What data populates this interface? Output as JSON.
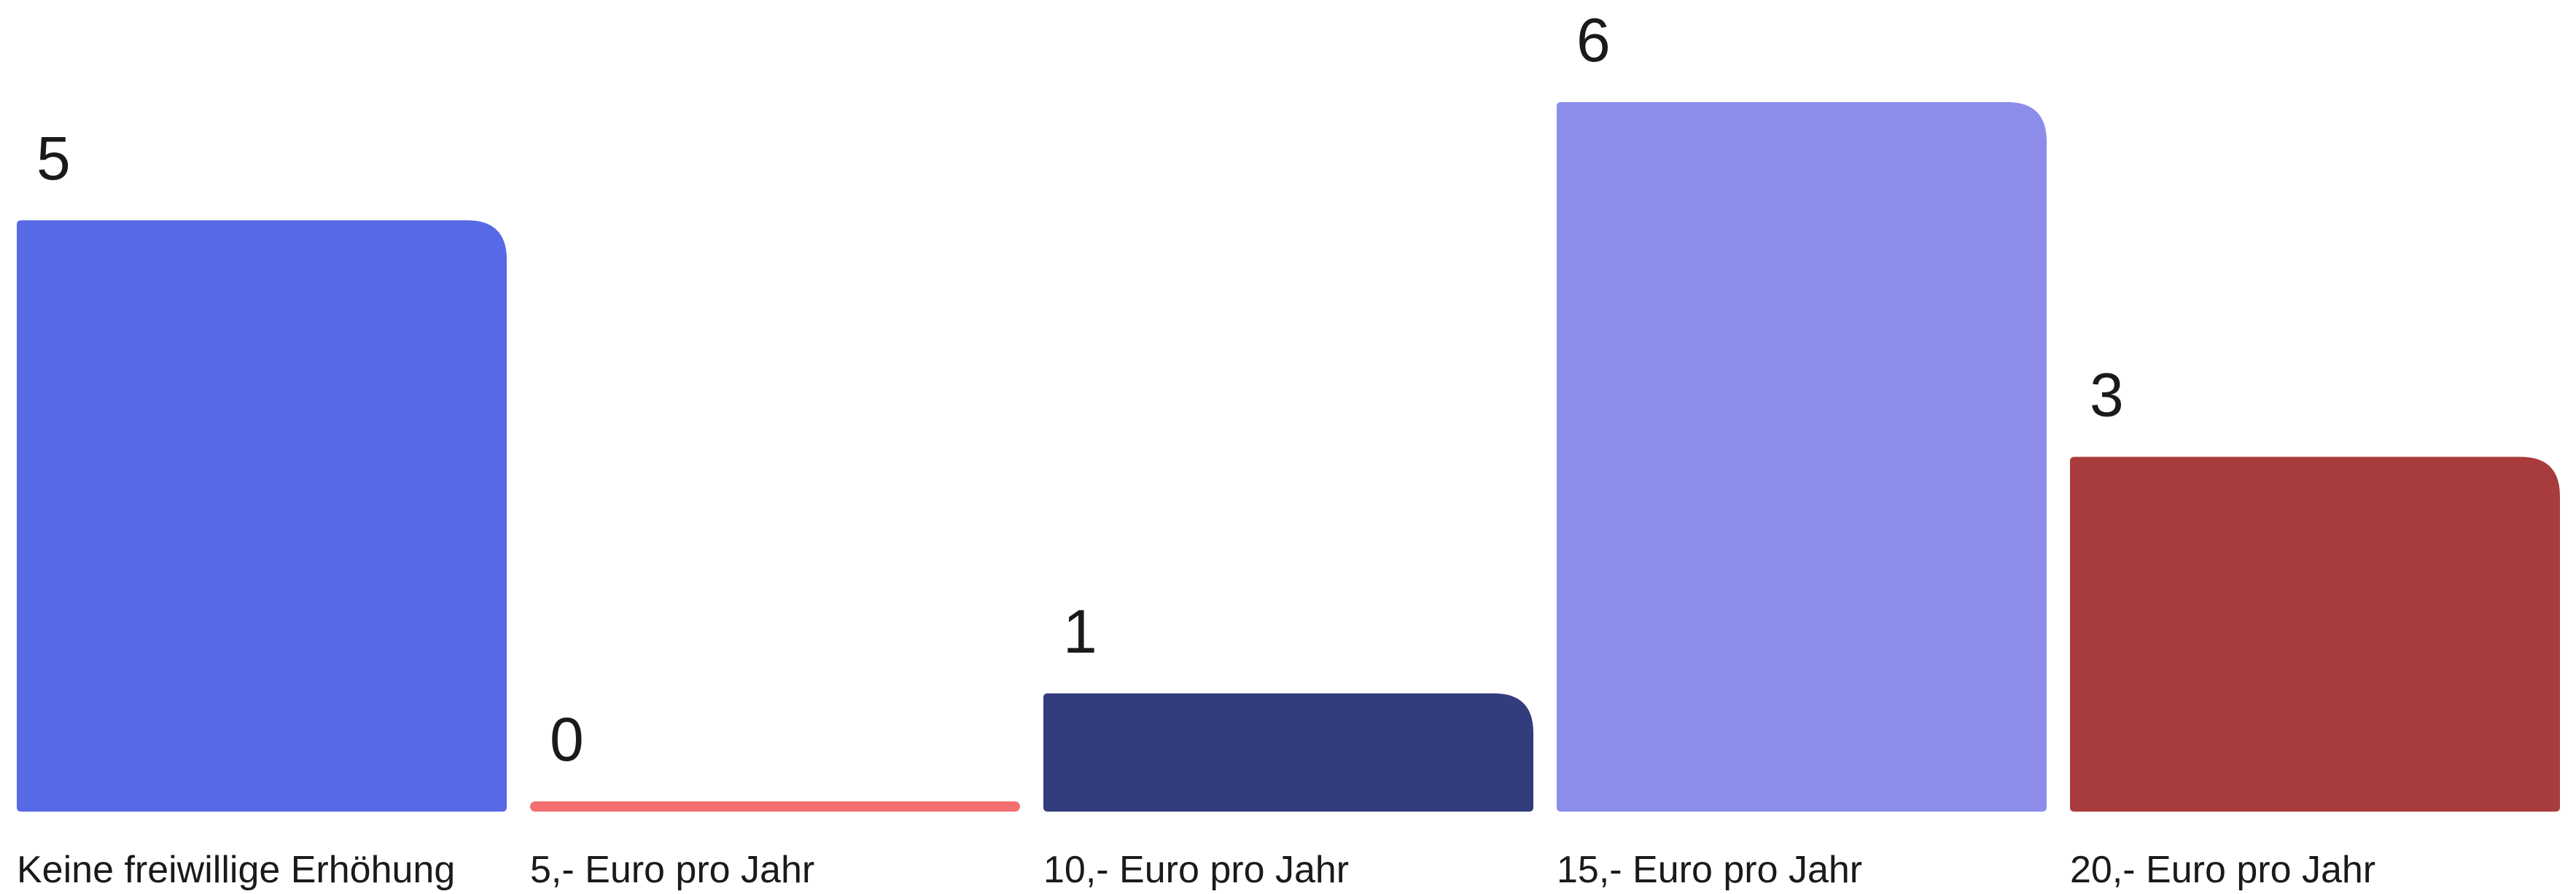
{
  "chart_data": {
    "type": "bar",
    "categories": [
      "Keine freiwillige Erhöhung",
      "5,- Euro pro Jahr",
      "10,- Euro pro Jahr",
      "15,- Euro pro Jahr",
      "20,- Euro pro Jahr"
    ],
    "values": [
      5,
      0,
      1,
      6,
      3
    ],
    "colors": [
      "#5869e6",
      "#f36f6f",
      "#333c7c",
      "#8c8deb",
      "#a83c3c"
    ],
    "data_labels": [
      "5",
      "0",
      "1",
      "6",
      "3"
    ],
    "title": "",
    "xlabel": "",
    "ylabel": "",
    "ylim": [
      0,
      6
    ],
    "grid": false,
    "legend": "none"
  }
}
